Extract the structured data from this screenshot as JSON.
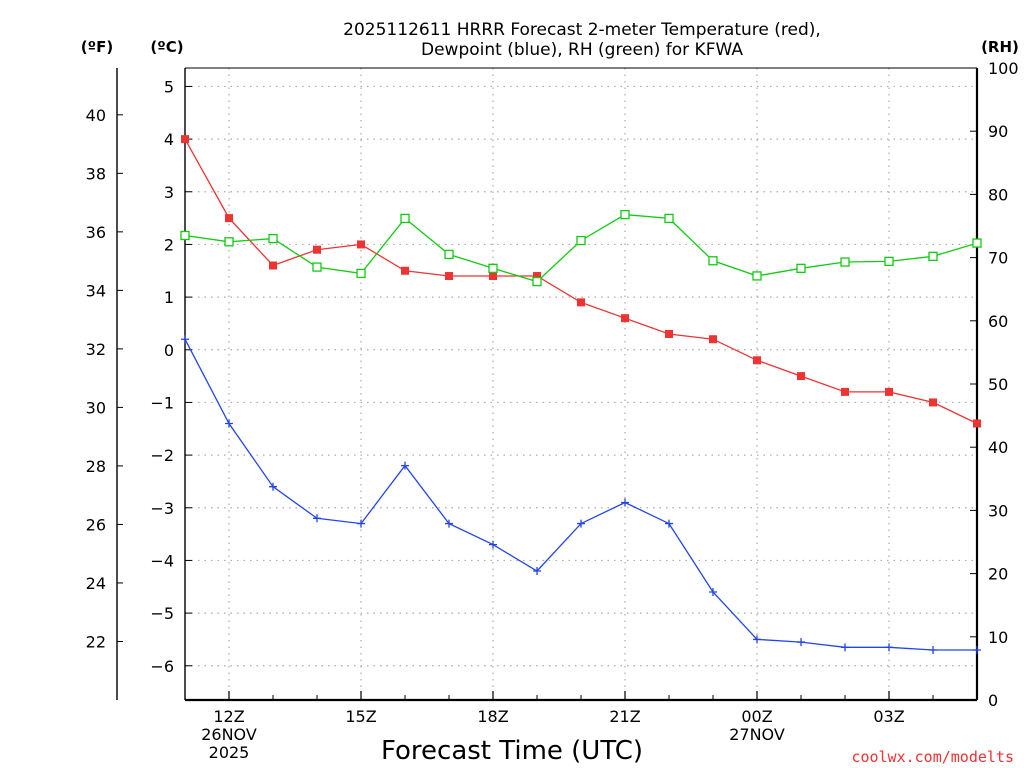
{
  "chart_data": {
    "type": "line",
    "title_lines": [
      "2025112611 HRRR Forecast 2-meter Temperature (red),",
      "Dewpoint (blue), RH (green) for KFWA"
    ],
    "xlabel": "Forecast Time (UTC)",
    "credit": "coolwx.com/modelts",
    "grid": true,
    "x_hours": [
      11,
      12,
      13,
      14,
      15,
      16,
      17,
      18,
      19,
      20,
      21,
      22,
      23,
      24,
      25,
      26,
      27,
      28,
      29
    ],
    "xlim": [
      11,
      29
    ],
    "x_ticks": [
      {
        "hour": 12,
        "lines": [
          "12Z",
          "26NOV",
          "2025"
        ]
      },
      {
        "hour": 15,
        "lines": [
          "15Z"
        ]
      },
      {
        "hour": 18,
        "lines": [
          "18Z"
        ]
      },
      {
        "hour": 21,
        "lines": [
          "21Z"
        ]
      },
      {
        "hour": 24,
        "lines": [
          "00Z",
          "27NOV"
        ]
      },
      {
        "hour": 27,
        "lines": [
          "03Z"
        ]
      }
    ],
    "axes": {
      "celsius": {
        "unit_label": "(ºC)",
        "ylim": [
          -6.65,
          5.35
        ],
        "ticks": [
          5,
          4,
          3,
          2,
          1,
          0,
          -1,
          -2,
          -3,
          -4,
          -5,
          -6
        ]
      },
      "fahrenheit": {
        "unit_label": "(ºF)",
        "ylim": [
          20.0,
          41.6
        ],
        "ticks": [
          40,
          38,
          36,
          34,
          32,
          30,
          28,
          26,
          24,
          22
        ]
      },
      "rh": {
        "unit_label": "(RH)",
        "ylim": [
          0,
          100
        ],
        "ticks": [
          100,
          90,
          80,
          70,
          60,
          50,
          40,
          30,
          20,
          10,
          0
        ]
      }
    },
    "series": [
      {
        "name": "Temperature",
        "color": "#ee3333",
        "axis": "celsius",
        "marker": "filled-square",
        "values": [
          4.0,
          2.5,
          1.6,
          1.9,
          2.0,
          1.5,
          1.4,
          1.4,
          1.4,
          0.9,
          0.6,
          0.3,
          0.2,
          -0.2,
          -0.5,
          -0.8,
          -0.8,
          -1.0,
          -1.4
        ]
      },
      {
        "name": "Dewpoint",
        "color": "#2244ee",
        "axis": "celsius",
        "marker": "plus",
        "values": [
          0.2,
          -1.4,
          -2.6,
          -3.2,
          -3.3,
          -2.2,
          -3.3,
          -3.7,
          -4.2,
          -3.3,
          -2.9,
          -3.3,
          -4.6,
          -5.5,
          -5.55,
          -5.65,
          -5.65,
          -5.7,
          -5.7
        ]
      },
      {
        "name": "RH",
        "color": "#11cc11",
        "axis": "rh",
        "marker": "open-square",
        "values": [
          73.5,
          72.5,
          73,
          68.5,
          67.5,
          76.2,
          70.5,
          68.3,
          66.2,
          72.7,
          76.8,
          76.2,
          69.5,
          67.1,
          68.3,
          69.3,
          69.4,
          70.2,
          72.3
        ]
      }
    ]
  }
}
